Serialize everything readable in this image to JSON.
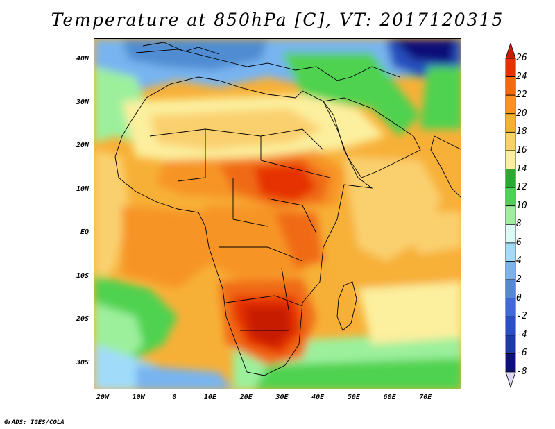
{
  "title": "Temperature at 850hPa [C], VT: 2017120315",
  "footer": "GrADS: IGES/COLA",
  "map": {
    "lat_ticks": [
      {
        "label": "40N",
        "value": 40
      },
      {
        "label": "30N",
        "value": 30
      },
      {
        "label": "20N",
        "value": 20
      },
      {
        "label": "10N",
        "value": 10
      },
      {
        "label": "EQ",
        "value": 0
      },
      {
        "label": "10S",
        "value": -10
      },
      {
        "label": "20S",
        "value": -20
      },
      {
        "label": "30S",
        "value": -30
      }
    ],
    "lon_ticks": [
      {
        "label": "20W",
        "value": -20
      },
      {
        "label": "10W",
        "value": -10
      },
      {
        "label": "0",
        "value": 0
      },
      {
        "label": "10E",
        "value": 10
      },
      {
        "label": "20E",
        "value": 20
      },
      {
        "label": "30E",
        "value": 30
      },
      {
        "label": "40E",
        "value": 40
      },
      {
        "label": "50E",
        "value": 50
      },
      {
        "label": "60E",
        "value": 60
      },
      {
        "label": "70E",
        "value": 70
      }
    ],
    "lon_range": [
      -22.5,
      80
    ],
    "lat_range": [
      -36,
      45
    ]
  },
  "colorbar": {
    "labels": [
      "26",
      "24",
      "22",
      "20",
      "18",
      "16",
      "14",
      "12",
      "10",
      "8",
      "6",
      "4",
      "2",
      "0",
      "-2",
      "-4",
      "-6",
      "-8"
    ],
    "colors": [
      "#c81e00",
      "#e63200",
      "#f06a14",
      "#f79428",
      "#f7b037",
      "#fad06e",
      "#fcef9e",
      "#2daa2d",
      "#50d250",
      "#9cf09c",
      "#dcfaf5",
      "#a0dcfa",
      "#78b4f0",
      "#508cd2",
      "#3c6ed2",
      "#2850be",
      "#1e3ca0",
      "#0f0f78",
      "#dcd8f5"
    ]
  }
}
